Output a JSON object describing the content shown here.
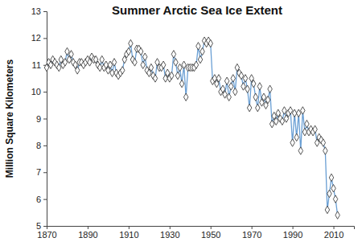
{
  "chart_data": {
    "type": "line",
    "title": "Summer Arctic Sea Ice Extent",
    "y_label": "Million Square Kilometers",
    "x": [
      1870,
      1871,
      1872,
      1873,
      1874,
      1875,
      1876,
      1877,
      1878,
      1879,
      1880,
      1881,
      1882,
      1883,
      1884,
      1885,
      1886,
      1887,
      1888,
      1889,
      1890,
      1891,
      1892,
      1893,
      1894,
      1895,
      1896,
      1897,
      1898,
      1899,
      1900,
      1901,
      1902,
      1903,
      1904,
      1905,
      1906,
      1907,
      1908,
      1909,
      1910,
      1911,
      1912,
      1913,
      1914,
      1915,
      1916,
      1917,
      1918,
      1919,
      1920,
      1921,
      1922,
      1923,
      1924,
      1925,
      1926,
      1927,
      1928,
      1929,
      1930,
      1931,
      1932,
      1933,
      1934,
      1935,
      1936,
      1937,
      1938,
      1939,
      1940,
      1941,
      1942,
      1943,
      1944,
      1945,
      1946,
      1947,
      1948,
      1949,
      1950,
      1951,
      1952,
      1953,
      1954,
      1955,
      1956,
      1957,
      1958,
      1959,
      1960,
      1961,
      1962,
      1963,
      1964,
      1965,
      1966,
      1967,
      1968,
      1969,
      1970,
      1971,
      1972,
      1973,
      1974,
      1975,
      1976,
      1977,
      1978,
      1979,
      1980,
      1981,
      1982,
      1983,
      1984,
      1985,
      1986,
      1987,
      1988,
      1989,
      1990,
      1991,
      1992,
      1993,
      1994,
      1995,
      1996,
      1997,
      1998,
      1999,
      2000,
      2001,
      2002,
      2003,
      2004,
      2005,
      2006,
      2007,
      2008,
      2009,
      2010,
      2011,
      2012
    ],
    "series": [
      {
        "color": "#6a9fd4",
        "marker": "diamond",
        "values": [
          10.9,
          11.1,
          11.0,
          11.2,
          11.1,
          11.0,
          10.9,
          11.2,
          11.0,
          11.1,
          11.5,
          11.2,
          11.4,
          11.1,
          11.0,
          10.8,
          11.1,
          11.1,
          11.0,
          11.1,
          11.2,
          11.1,
          11.3,
          11.2,
          11.2,
          11.0,
          10.9,
          11.2,
          10.9,
          11.0,
          10.8,
          11.0,
          10.7,
          11.1,
          10.7,
          10.6,
          10.7,
          10.8,
          11.2,
          11.4,
          11.5,
          11.8,
          11.2,
          11.1,
          11.6,
          11.6,
          11.5,
          11.0,
          11.3,
          10.8,
          10.7,
          10.9,
          10.6,
          10.5,
          11.1,
          10.9,
          10.9,
          11.0,
          10.5,
          10.7,
          10.5,
          10.6,
          11.4,
          11.1,
          10.6,
          10.9,
          10.3,
          11.0,
          9.8,
          10.9,
          10.9,
          10.9,
          10.9,
          11.0,
          11.7,
          11.2,
          11.5,
          11.9,
          11.8,
          11.9,
          11.8,
          10.4,
          10.5,
          10.3,
          10.5,
          10.0,
          10.1,
          9.9,
          10.4,
          9.8,
          10.2,
          10.5,
          10.0,
          10.9,
          10.7,
          10.6,
          10.2,
          10.5,
          10.1,
          9.4,
          10.5,
          10.3,
          9.8,
          9.4,
          10.2,
          9.6,
          9.8,
          9.5,
          9.7,
          10.1,
          8.8,
          9.1,
          8.9,
          9.2,
          9.0,
          8.9,
          9.3,
          9.0,
          9.2,
          9.3,
          8.1,
          9.2,
          8.3,
          9.2,
          7.8,
          9.3,
          8.5,
          8.8,
          8.5,
          8.6,
          8.5,
          8.6,
          8.1,
          8.3,
          8.2,
          8.1,
          7.8,
          5.6,
          6.2,
          6.8,
          6.4,
          6.0,
          5.4
        ]
      }
    ],
    "xlim": [
      1870,
      2020
    ],
    "xticks": [
      1870,
      1890,
      1910,
      1930,
      1950,
      1970,
      1990,
      2010
    ],
    "ylim": [
      5,
      13
    ],
    "yticks": [
      5,
      6,
      7,
      8,
      9,
      10,
      11,
      12,
      13
    ],
    "grid": false
  }
}
